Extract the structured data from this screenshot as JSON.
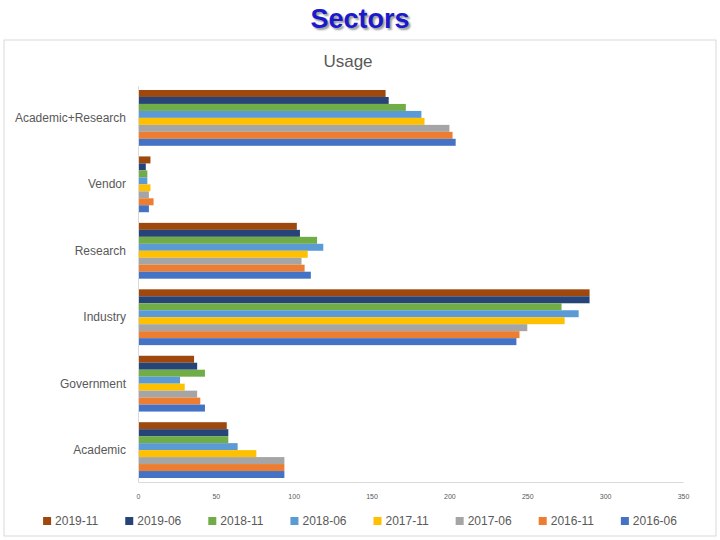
{
  "header": {
    "title": "Sectors"
  },
  "chart_data": {
    "type": "bar",
    "orientation": "horizontal",
    "title": "Usage",
    "grid": false,
    "legend": "bottom",
    "categories": [
      "Academic+Research",
      "Vendor",
      "Research",
      "Industry",
      "Government",
      "Academic"
    ],
    "xlim": [
      0,
      350
    ],
    "xticks": [
      0,
      50,
      100,
      150,
      200,
      250,
      300,
      350
    ],
    "series": [
      {
        "name": "2019-11",
        "color": "#9e480e",
        "values": [
          159,
          8,
          102,
          290,
          36,
          57
        ]
      },
      {
        "name": "2019-06",
        "color": "#264478",
        "values": [
          161,
          5,
          104,
          290,
          38,
          58
        ]
      },
      {
        "name": "2018-11",
        "color": "#70ad47",
        "values": [
          172,
          6,
          115,
          272,
          43,
          58
        ]
      },
      {
        "name": "2018-06",
        "color": "#5b9bd5",
        "values": [
          182,
          6,
          119,
          283,
          27,
          64
        ]
      },
      {
        "name": "2017-11",
        "color": "#ffc000",
        "values": [
          184,
          8,
          109,
          274,
          30,
          76
        ]
      },
      {
        "name": "2017-06",
        "color": "#a5a5a5",
        "values": [
          200,
          7,
          105,
          250,
          38,
          94
        ]
      },
      {
        "name": "2016-11",
        "color": "#ed7d31",
        "values": [
          202,
          10,
          107,
          245,
          40,
          94
        ]
      },
      {
        "name": "2016-06",
        "color": "#4472c4",
        "values": [
          204,
          7,
          111,
          243,
          43,
          94
        ]
      }
    ]
  }
}
